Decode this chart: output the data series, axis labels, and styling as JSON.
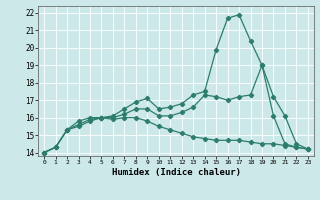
{
  "xlabel": "Humidex (Indice chaleur)",
  "bg_color": "#cce8e8",
  "line_color": "#2d7d6e",
  "grid_color": "#ffffff",
  "xlim": [
    -0.5,
    23.5
  ],
  "ylim": [
    13.8,
    22.4
  ],
  "xticks": [
    0,
    1,
    2,
    3,
    4,
    5,
    6,
    7,
    8,
    9,
    10,
    11,
    12,
    13,
    14,
    15,
    16,
    17,
    18,
    19,
    20,
    21,
    22,
    23
  ],
  "yticks": [
    14,
    15,
    16,
    17,
    18,
    19,
    20,
    21,
    22
  ],
  "line_max_x": [
    0,
    1,
    2,
    3,
    4,
    5,
    6,
    7,
    8,
    9,
    10,
    11,
    12,
    13,
    14,
    15,
    16,
    17,
    18,
    19,
    20,
    21,
    22,
    23
  ],
  "line_max_y": [
    14.0,
    14.3,
    15.3,
    15.8,
    16.0,
    16.0,
    16.1,
    16.5,
    16.9,
    17.1,
    16.5,
    16.6,
    16.8,
    17.3,
    17.5,
    19.9,
    21.7,
    21.9,
    20.4,
    19.0,
    16.1,
    14.5,
    14.3,
    14.2
  ],
  "line_mid_x": [
    0,
    1,
    2,
    3,
    4,
    5,
    6,
    7,
    8,
    9,
    10,
    11,
    12,
    13,
    14,
    15,
    16,
    17,
    18,
    19,
    20,
    21,
    22,
    23
  ],
  "line_mid_y": [
    14.0,
    14.3,
    15.3,
    15.6,
    15.9,
    16.0,
    16.0,
    16.2,
    16.5,
    16.5,
    16.1,
    16.1,
    16.3,
    16.6,
    17.3,
    17.2,
    17.0,
    17.2,
    17.3,
    19.0,
    17.2,
    16.1,
    14.5,
    14.2
  ],
  "line_min_x": [
    0,
    1,
    2,
    3,
    4,
    5,
    6,
    7,
    8,
    9,
    10,
    11,
    12,
    13,
    14,
    15,
    16,
    17,
    18,
    19,
    20,
    21,
    22,
    23
  ],
  "line_min_y": [
    14.0,
    14.3,
    15.3,
    15.5,
    15.8,
    16.0,
    15.9,
    16.0,
    16.0,
    15.8,
    15.5,
    15.3,
    15.1,
    14.9,
    14.8,
    14.7,
    14.7,
    14.7,
    14.6,
    14.5,
    14.5,
    14.4,
    14.3,
    14.2
  ]
}
